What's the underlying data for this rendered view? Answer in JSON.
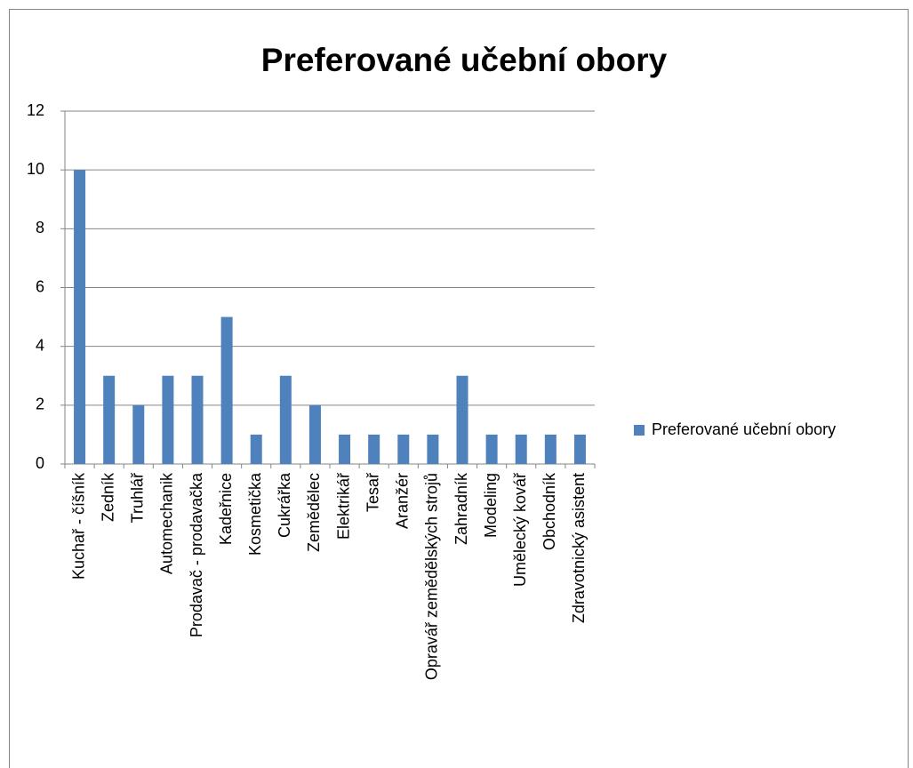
{
  "chart_data": {
    "type": "bar",
    "title": "Preferované učební obory",
    "categories": [
      "Kuchař - číšník",
      "Zedník",
      "Truhlář",
      "Automechanik",
      "Prodavač - prodavačka",
      "Kadeřnice",
      "Kosmetička",
      "Cukrářka",
      "Zemědělec",
      "Elektrikář",
      "Tesař",
      "Aranžér",
      "Opravář zemědělských strojů",
      "Zahradník",
      "Modeling",
      "Umělecký kovář",
      "Obchodník",
      "Zdravotnický asistent"
    ],
    "series": [
      {
        "name": "Preferované učební obory",
        "color": "#4f81bd",
        "values": [
          10,
          3,
          2,
          3,
          3,
          5,
          1,
          3,
          2,
          1,
          1,
          1,
          1,
          3,
          1,
          1,
          1,
          1
        ]
      }
    ],
    "ylim": [
      0,
      12
    ],
    "yticks": [
      0,
      2,
      4,
      6,
      8,
      10,
      12
    ],
    "grid": true,
    "legend": "right"
  }
}
